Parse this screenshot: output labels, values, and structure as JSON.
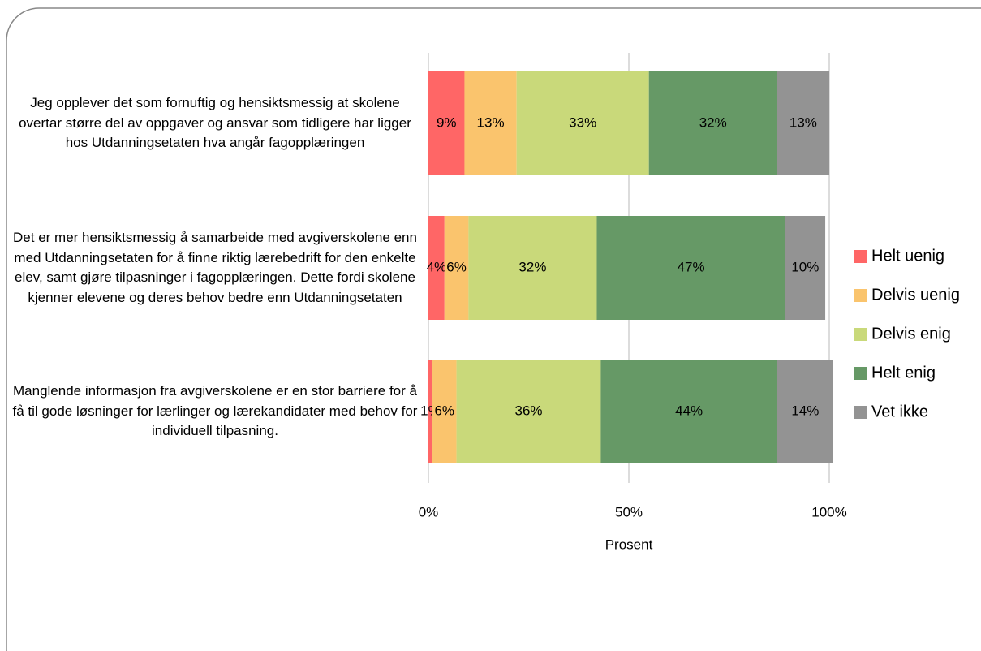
{
  "chart_data": {
    "type": "stacked_barh",
    "categories": [
      "Jeg opplever det som fornuftig og hensiktsmessig at skolene overtar større del av oppgaver og ansvar som tidligere har ligger hos Utdanningsetaten hva angår fagopplæringen",
      "Det er mer hensiktsmessig å samarbeide med avgiverskolene enn med Utdanningsetaten for å finne riktig lærebedrift for den enkelte elev, samt gjøre tilpasninger i fagopplæringen. Dette fordi skolene kjenner elevene og deres behov bedre enn Utdanningsetaten",
      "Manglende informasjon fra avgiverskolene er en stor barriere for å få til gode løsninger for lærlinger og lærekandidater med behov for individuell tilpasning."
    ],
    "series": [
      {
        "name": "Helt uenig",
        "color": "#ff6666",
        "values": [
          9,
          4,
          1
        ],
        "value_labels": [
          "9%",
          "4%",
          "1%"
        ]
      },
      {
        "name": "Delvis uenig",
        "color": "#fac46d",
        "values": [
          13,
          6,
          6
        ],
        "value_labels": [
          "13%",
          "6%",
          "6%"
        ]
      },
      {
        "name": "Delvis enig",
        "color": "#c9d97a",
        "values": [
          33,
          32,
          36
        ],
        "value_labels": [
          "33%",
          "32%",
          "36%"
        ]
      },
      {
        "name": "Helt enig",
        "color": "#669966",
        "values": [
          32,
          47,
          44
        ],
        "value_labels": [
          "32%",
          "47%",
          "44%"
        ]
      },
      {
        "name": "Vet ikke",
        "color": "#939393",
        "values": [
          13,
          10,
          14
        ],
        "value_labels": [
          "13%",
          "10%",
          "14%"
        ]
      }
    ],
    "xlabel": "Prosent",
    "xlim": [
      0,
      100
    ],
    "xticks": [
      {
        "value": 0,
        "label": "0%"
      },
      {
        "value": 50,
        "label": "50%"
      },
      {
        "value": 100,
        "label": "100%"
      }
    ],
    "grid": true,
    "legend": "right"
  }
}
